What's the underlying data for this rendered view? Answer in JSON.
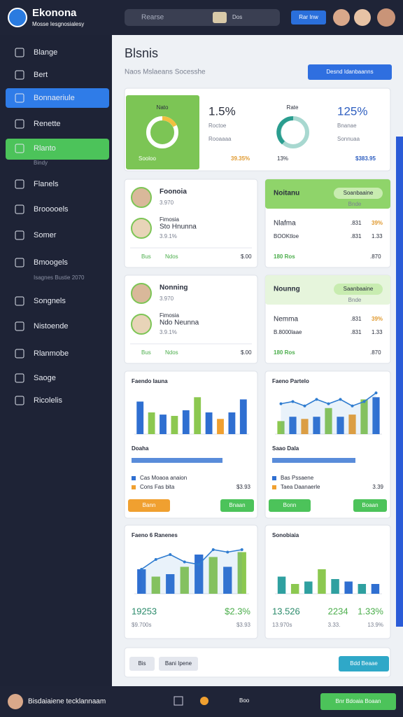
{
  "top": {
    "brand": "Ekonona",
    "tagline": "Mosse Iesgnosialesy",
    "search": "Rearse",
    "search_tag": "Dos",
    "button": "Rar Inw"
  },
  "sidebar": {
    "items": [
      "Blange",
      "Bert",
      "Bonnaeriule",
      "Renette",
      "Rlanto",
      "Bindy",
      "Flanels",
      "Brooooels",
      "Somer",
      "Bmoogels",
      "Isagnes Bustie 2070",
      "Songnels",
      "Nistoende",
      "Rlanmobe",
      "Saoge",
      "Ricolelis"
    ]
  },
  "header": {
    "title": "Blsnis",
    "subtitle": "Naos Mslaeans Socesshe",
    "button": "Desnd Idanbaanns"
  },
  "kpi": {
    "left_label": "Nato",
    "left_value": "1.5%",
    "left_caption": "Roctoe",
    "left_sub": "Rooaaaa",
    "left_total": "39.35%",
    "left_badge": "Sooloo",
    "right_label": "Rate",
    "right_value": "125%",
    "right_caption": "Bnanae",
    "right_sub": "Sonnuaa",
    "right_total": "$383.95",
    "mid_badge": "13%"
  },
  "cards": [
    {
      "name": "Foonoia",
      "value": "3.970",
      "name2": "Sto Hnunna",
      "sub2": "Fimosia",
      "value2": "3.9.1%",
      "f1": "Bus",
      "f2": "Ndos",
      "f3": "$.00"
    },
    {
      "title": "Noitanu",
      "badge": "Soanbaaine",
      "sub": "Bnde",
      "r1": "Nlafma",
      "r1v": ".831",
      "r1p": "39%",
      "r2": "BOOKtloe",
      "r2v": ".831",
      "r2p": "1.33",
      "total": "180 Ros",
      "f3": ".870"
    },
    {
      "name": "Nonning",
      "value": "3.970",
      "name2": "Ndo Neunna",
      "sub2": "Fimosia",
      "value2": "3.9.1%",
      "f1": "Bus",
      "f2": "Ndos",
      "f3": "$.00"
    },
    {
      "title": "Nounng",
      "badge": "Saanbaaine",
      "sub": "Bnde",
      "r1": "Nemma",
      "r1v": ".831",
      "r1p": "39%",
      "r2": "B.8000laae",
      "r2v": ".831",
      "r2p": "1.33",
      "total": "180 Ros",
      "f3": ".870"
    }
  ],
  "charts": [
    {
      "title": "Faendo Iauna",
      "ylim": [
        0,
        100
      ],
      "values": [
        75,
        50,
        45,
        42,
        55,
        85,
        50,
        35,
        50,
        80
      ],
      "colors": [
        "#2f6fd1",
        "#8cc850",
        "#2f6fd1",
        "#8cc850",
        "#2f6fd1",
        "#8cc850",
        "#2f6fd1",
        "#f0a030",
        "#2f6fd1",
        "#2f6fd1"
      ],
      "legend_title": "Doaha",
      "legend": [
        "Cas Moaoa anaion",
        "Cons Fas bita"
      ],
      "legend_value": "$3.93",
      "button1": "Bann",
      "button2": "Bnaan"
    },
    {
      "title": "Faeno Partelo",
      "ylim": [
        0,
        100
      ],
      "values": [
        30,
        40,
        35,
        40,
        60,
        40,
        45,
        80,
        85
      ],
      "colors": [
        "#8cc850",
        "#2f6fd1",
        "#f0a030",
        "#2f6fd1",
        "#8cc850",
        "#2f6fd1",
        "#f0a030",
        "#8cc850",
        "#2f6fd1"
      ],
      "line": [
        70,
        75,
        65,
        80,
        70,
        80,
        65,
        75,
        95
      ],
      "legend_title": "Saao Dala",
      "legend": [
        "Bas Pssaene",
        "Taea Daanaerle"
      ],
      "legend_value": "3.39",
      "button1": "Bonn",
      "button2": "Boaan"
    },
    {
      "title": "Faeno 6 Ranenes",
      "ylim": [
        0,
        100
      ],
      "values": [
        50,
        35,
        40,
        55,
        80,
        75,
        55,
        85
      ],
      "colors": [
        "#2f6fd1",
        "#8cc850",
        "#2f6fd1",
        "#8cc850",
        "#2f6fd1",
        "#8cc850",
        "#2f6fd1",
        "#8cc850"
      ],
      "line": [
        50,
        70,
        80,
        65,
        60,
        90,
        85,
        90
      ],
      "stat1": "19253",
      "stat2": "$2.3%",
      "sub1": "$9.700s",
      "sub2": "$3.93"
    },
    {
      "title": "Sonobiaia",
      "ylim": [
        0,
        100
      ],
      "values": [
        35,
        20,
        25,
        50,
        30,
        25,
        20,
        20
      ],
      "colors": [
        "#2fa0a0",
        "#8cc850",
        "#2fa0a0",
        "#8cc850",
        "#2fa0a0",
        "#2f6fd1",
        "#2fa0a0",
        "#2f6fd1"
      ],
      "stat1": "13.526",
      "stat2": "2234",
      "stat3": "1.33%",
      "sub1": "13.970s",
      "sub2": "3.33.",
      "sub3": "13.9%"
    }
  ],
  "footer": {
    "chip1": "Bis",
    "chip2": "Bani Ipene",
    "button": "Bdd Beaae"
  },
  "bottom": {
    "user": "Bisdaiaiene tecklannaam",
    "tag": "Boo",
    "button": "Bnr Bdoaia Boaan"
  }
}
